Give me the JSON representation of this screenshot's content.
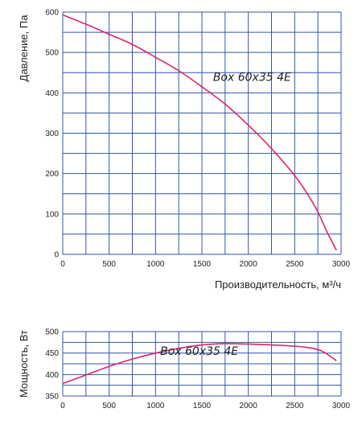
{
  "chart_data": [
    {
      "type": "line",
      "title": "",
      "xlabel": "Производительность, м³/ч",
      "ylabel": "Давление, Па",
      "xlim": [
        0,
        3000
      ],
      "ylim": [
        0,
        600
      ],
      "x_ticks": [
        "0",
        "500",
        "1000",
        "1500",
        "2000",
        "2500",
        "3000"
      ],
      "y_ticks": [
        "0",
        "100",
        "200",
        "300",
        "400",
        "500",
        "600"
      ],
      "grid": true,
      "series": [
        {
          "name": "Box 60x35 4E",
          "x": [
            0,
            250,
            500,
            750,
            1000,
            1250,
            1500,
            1750,
            2000,
            2250,
            2500,
            2650,
            2750,
            2850,
            2950
          ],
          "y": [
            593,
            570,
            545,
            520,
            488,
            455,
            415,
            372,
            320,
            262,
            195,
            145,
            105,
            55,
            10
          ]
        }
      ]
    },
    {
      "type": "line",
      "title": "",
      "xlabel": "",
      "ylabel": "Мощность, Вт",
      "xlim": [
        0,
        3000
      ],
      "ylim": [
        350,
        500
      ],
      "x_ticks": [
        "0",
        "500",
        "1000",
        "1500",
        "2000",
        "2500",
        "3000"
      ],
      "y_ticks": [
        "350",
        "400",
        "450",
        "500"
      ],
      "grid": true,
      "series": [
        {
          "name": "Box 60x35 4E",
          "x": [
            0,
            250,
            500,
            750,
            1000,
            1250,
            1500,
            1750,
            2000,
            2250,
            2500,
            2700,
            2800,
            2900,
            2950
          ],
          "y": [
            379,
            399,
            419,
            436,
            450,
            461,
            469,
            472,
            471,
            469,
            466,
            461,
            454,
            440,
            432
          ]
        }
      ]
    }
  ],
  "colors": {
    "grid": "#3355aa",
    "curve": "#e0246a",
    "text": "#222222"
  }
}
